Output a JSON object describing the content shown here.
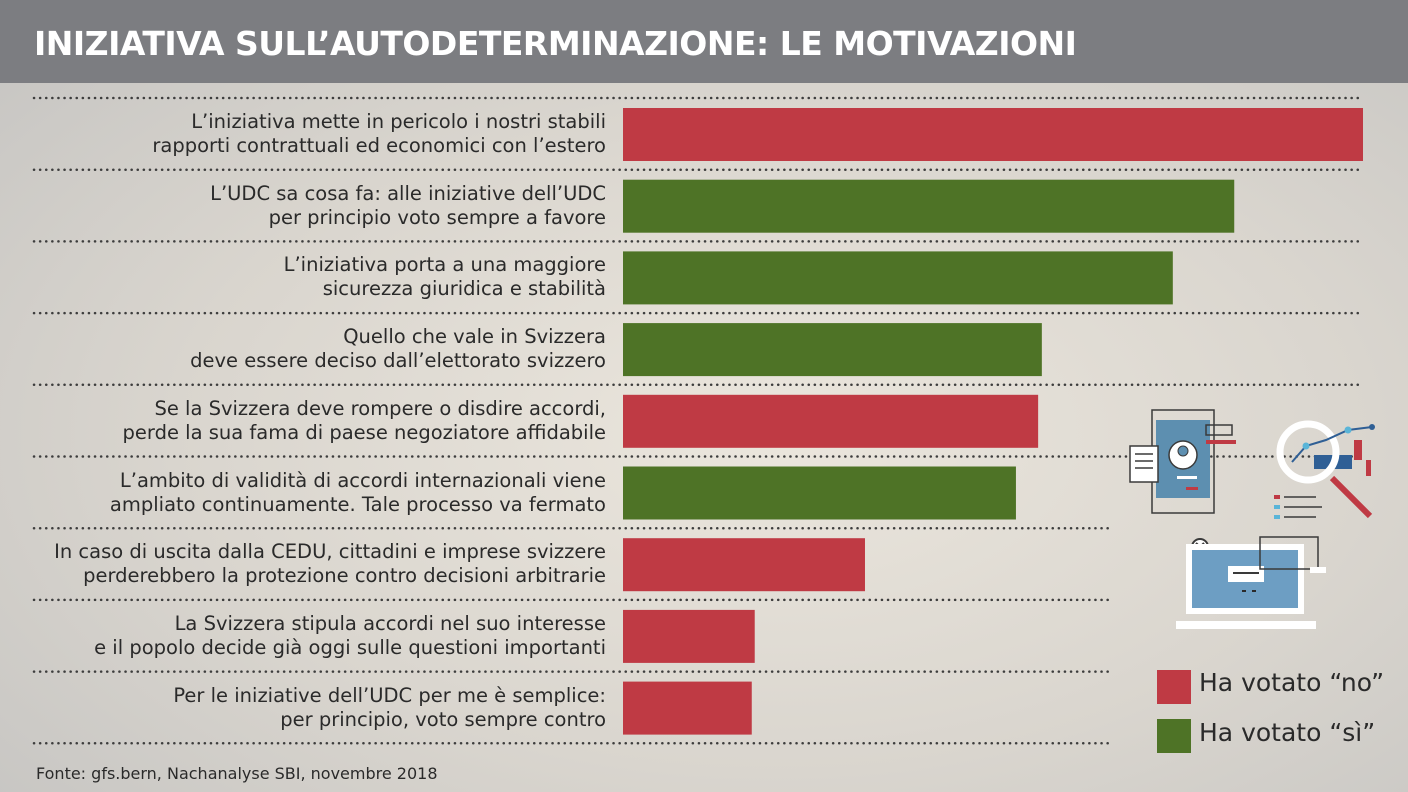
{
  "header": {
    "title": "INIZIATIVA SULL’AUTODETERMINAZIONE: LE MOTIVAZIONI"
  },
  "chart_data": {
    "type": "bar",
    "orientation": "horizontal",
    "title": "INIZIATIVA SULL’AUTODETERMINAZIONE: LE MOTIVAZIONI",
    "categories": [
      "L’iniziativa mette in pericolo i nostri stabili\nrapporti contrattuali ed economici con l’estero",
      "L’UDC sa cosa fa: alle iniziative dell’UDC\nper principio voto sempre a favore",
      "L’iniziativa porta  a una maggiore\nsicurezza giuridica e stabilità",
      "Quello che vale in Svizzera\ndeve essere deciso dall’elettorato svizzero",
      "Se la Svizzera deve rompere o disdire accordi,\nperde la sua fama di paese negoziatore affidabile",
      "L’ambito di validità di accordi internazionali viene\nampliato continuamente. Tale processo va fermato",
      "In caso di uscita dalla CEDU, cittadini e imprese svizzere\nperderebbero la protezione contro decisioni arbitrarie",
      "La Svizzera stipula accordi nel suo interesse\ne il popolo decide già oggi sulle questioni importanti",
      "Per le iniziative dell’UDC per me è semplice:\nper principio, voto sempre contro"
    ],
    "values": [
      100,
      82.6,
      74.3,
      56.6,
      56.1,
      53.1,
      32.7,
      17.8,
      17.4
    ],
    "groups": [
      "no",
      "si",
      "si",
      "si",
      "no",
      "si",
      "no",
      "no",
      "no"
    ],
    "xlim": [
      0,
      100
    ],
    "grid": false,
    "legend": {
      "placement": "bottom-right",
      "entries": [
        {
          "key": "no",
          "label": "Ha votato “no”",
          "color": "#bf3a44"
        },
        {
          "key": "si",
          "label": "Ha votato “sì”",
          "color": "#4e7326"
        }
      ]
    }
  },
  "source": "Fonte: gfs.bern, Nachanalyse SBI, novembre 2018"
}
